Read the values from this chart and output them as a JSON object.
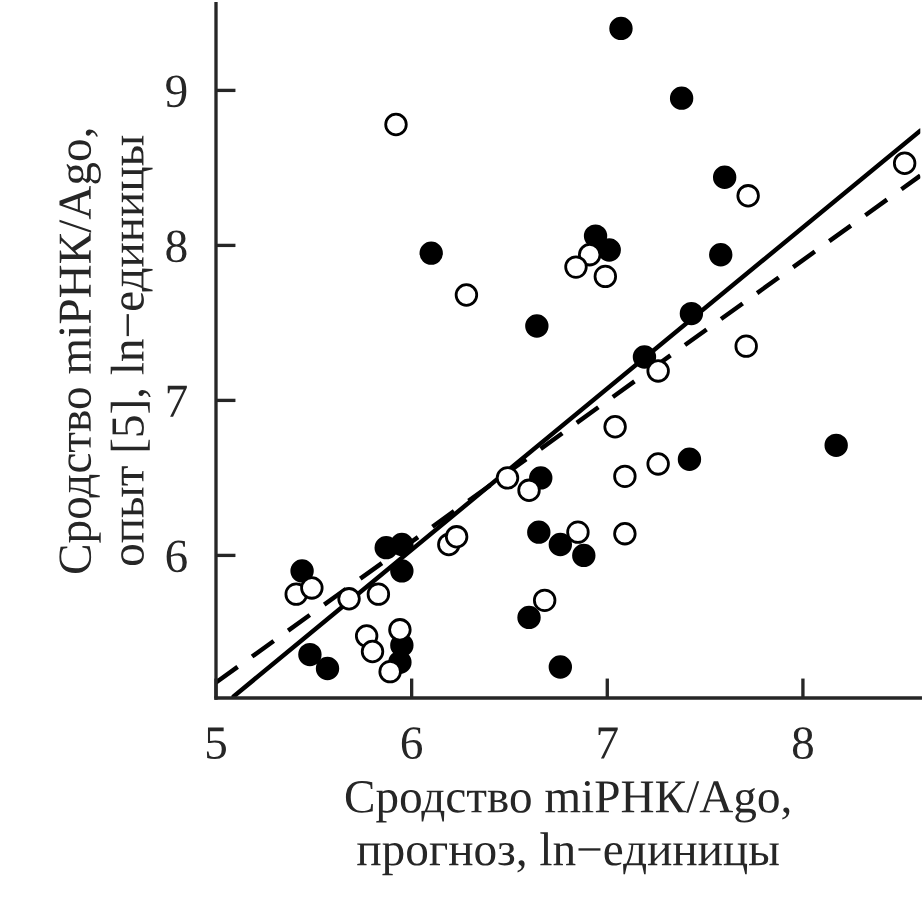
{
  "chart_data": {
    "type": "scatter",
    "xlabel": "Сродство miРНК/Ago,\nпрогноз, ln−единицы",
    "ylabel": "Сродство miРНК/Ago,\nопыт [5], ln−единицы",
    "xlim": [
      5,
      8.6
    ],
    "ylim": [
      5.08,
      9.56
    ],
    "xticks": [
      5,
      6,
      7,
      8
    ],
    "yticks": [
      6,
      7,
      8,
      9
    ],
    "grid": false,
    "marker": "circle",
    "series": [
      {
        "color": "#000000",
        "x": [
          6.1,
          6.64,
          7.07,
          7.38,
          7.6,
          6.94,
          7.01,
          7.58,
          7.43,
          7.19,
          6.66,
          5.87,
          5.95,
          5.95,
          5.44,
          5.48,
          5.57,
          5.95,
          5.94,
          6.65,
          6.76,
          6.6,
          6.76,
          7.42,
          6.88,
          8.17
        ],
        "values": [
          7.95,
          7.48,
          9.4,
          8.95,
          8.44,
          8.06,
          7.97,
          7.94,
          7.56,
          7.28,
          6.5,
          6.05,
          6.07,
          5.9,
          5.9,
          5.36,
          5.27,
          5.42,
          5.31,
          6.15,
          6.07,
          5.6,
          5.28,
          6.62,
          6.0,
          6.71
        ]
      },
      {
        "color": "#ffffff",
        "x": [
          5.92,
          6.28,
          7.72,
          6.91,
          6.84,
          6.99,
          7.26,
          7.71,
          8.52,
          6.49,
          6.6,
          6.19,
          6.23,
          5.41,
          5.49,
          5.68,
          5.83,
          5.77,
          5.8,
          5.94,
          5.89,
          6.68,
          7.04,
          7.26,
          7.09,
          6.85,
          7.09
        ],
        "values": [
          8.78,
          7.68,
          8.32,
          7.94,
          7.86,
          7.8,
          7.19,
          7.35,
          8.53,
          6.5,
          6.42,
          6.07,
          6.12,
          5.75,
          5.79,
          5.72,
          5.75,
          5.48,
          5.38,
          5.52,
          5.25,
          5.71,
          6.83,
          6.59,
          6.51,
          6.15,
          6.14
        ]
      },
      {
        "type": "line",
        "color": "#000000",
        "line_style": "solid",
        "marker": "none",
        "x": [
          5.09,
          8.6
        ],
        "values": [
          5.09,
          8.74
        ]
      },
      {
        "type": "line",
        "color": "#000000",
        "line_style": "dashed",
        "marker": "none",
        "x": [
          5.0,
          8.6
        ],
        "values": [
          5.18,
          8.45
        ]
      }
    ]
  }
}
